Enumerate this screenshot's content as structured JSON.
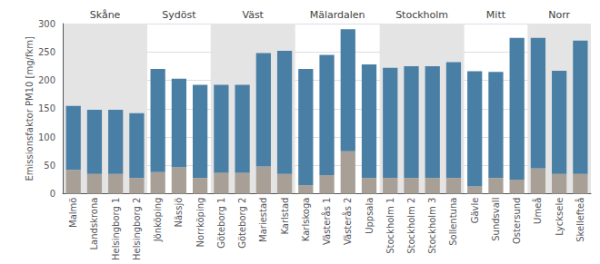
{
  "chart_data": {
    "type": "bar",
    "stacked": true,
    "grid": true,
    "ylabel": "Emissionsfaktor PM10 [mg/fkm]",
    "categories": [
      "Malmö",
      "Landskrona",
      "Helsingborg 1",
      "Helsingborg 2",
      "Jönköping",
      "Nässjö",
      "Norrköping",
      "Göteborg 1",
      "Göteborg 2",
      "Mariestad",
      "Karlstad",
      "Karlskoga",
      "Västerås 1",
      "Västerås 2",
      "Uppsala",
      "Stockholm 1",
      "Stockholm 2",
      "Stockholm 3",
      "Sollentuna",
      "Gävle",
      "Sundsvall",
      "Ostersund",
      "Umeå",
      "Lycksele",
      "Skellefteå"
    ],
    "series": [
      {
        "color": "#a8a096",
        "values": [
          42,
          35,
          35,
          28,
          38,
          47,
          28,
          37,
          37,
          48,
          35,
          15,
          33,
          75,
          28,
          28,
          28,
          28,
          28,
          13,
          28,
          25,
          45,
          35,
          35
        ]
      },
      {
        "color": "#4a7fa5",
        "values": [
          113,
          113,
          113,
          114,
          182,
          156,
          164,
          155,
          155,
          200,
          217,
          205,
          212,
          215,
          200,
          194,
          197,
          197,
          204,
          203,
          187,
          250,
          230,
          182,
          235
        ]
      }
    ],
    "annotations": [
      {
        "text": "Skåne",
        "from": "Malmö",
        "to": "Helsingborg 2",
        "color": "#e4e4e4"
      },
      {
        "text": "Sydöst",
        "from": "Jönköping",
        "to": "Norrköping"
      },
      {
        "text": "Väst",
        "from": "Göteborg 1",
        "to": "Karlstad",
        "color": "#e4e4e4"
      },
      {
        "text": "Mälardalen",
        "from": "Karlskoga",
        "to": "Uppsala"
      },
      {
        "text": "Stockholm",
        "from": "Stockholm 1",
        "to": "Sollentuna",
        "color": "#e4e4e4"
      },
      {
        "text": "Mitt",
        "from": "Gävle",
        "to": "Ostersund"
      },
      {
        "text": "Norr",
        "from": "Umeå",
        "to": "Skellefteå",
        "color": "#e4e4e4"
      }
    ],
    "ylim": [
      0,
      300
    ],
    "yticks": [
      0,
      50,
      100,
      150,
      200,
      250,
      300
    ]
  }
}
